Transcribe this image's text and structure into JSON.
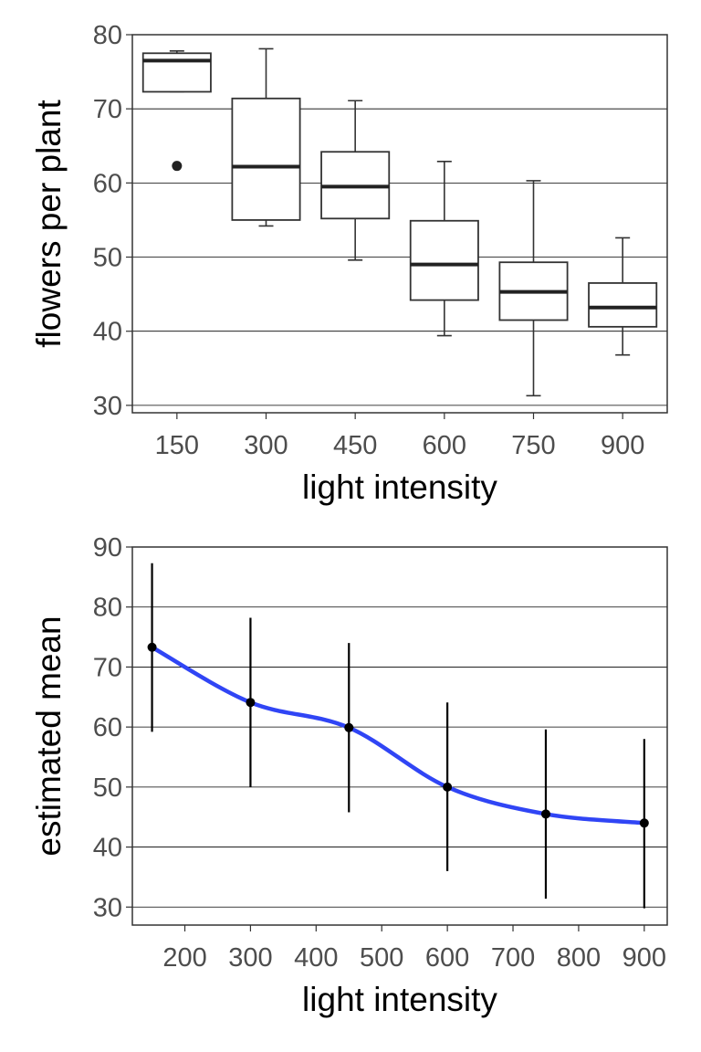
{
  "chart_data": [
    {
      "type": "box",
      "xlabel": "light intensity",
      "ylabel": "flowers per plant",
      "categories": [
        "150",
        "300",
        "450",
        "600",
        "750",
        "900"
      ],
      "boxes": [
        {
          "category": "150",
          "min": 72.3,
          "q1": 72.3,
          "median": 76.5,
          "q3": 77.5,
          "max": 77.8,
          "outliers": [
            62.3
          ]
        },
        {
          "category": "300",
          "min": 54.2,
          "q1": 55.0,
          "median": 62.2,
          "q3": 71.4,
          "max": 78.1,
          "outliers": []
        },
        {
          "category": "450",
          "min": 49.6,
          "q1": 55.2,
          "median": 59.5,
          "q3": 64.2,
          "max": 71.1,
          "outliers": []
        },
        {
          "category": "600",
          "min": 39.4,
          "q1": 44.2,
          "median": 49.0,
          "q3": 54.9,
          "max": 62.9,
          "outliers": []
        },
        {
          "category": "750",
          "min": 31.3,
          "q1": 41.5,
          "median": 45.3,
          "q3": 49.3,
          "max": 60.3,
          "outliers": []
        },
        {
          "category": "900",
          "min": 36.8,
          "q1": 40.6,
          "median": 43.2,
          "q3": 46.5,
          "max": 52.6,
          "outliers": []
        }
      ],
      "yticks": [
        30,
        40,
        50,
        60,
        70,
        80
      ],
      "ylim": [
        29,
        80
      ],
      "grid": "horizontal"
    },
    {
      "type": "line",
      "xlabel": "light intensity",
      "ylabel": "estimated mean",
      "x": [
        150,
        300,
        450,
        600,
        750,
        900
      ],
      "y": [
        73.3,
        64.1,
        59.9,
        50.0,
        45.5,
        44.0
      ],
      "lower": [
        59.2,
        50.0,
        45.8,
        36.0,
        31.4,
        29.8
      ],
      "upper": [
        87.3,
        78.2,
        74.0,
        64.1,
        59.6,
        58.0
      ],
      "xticks": [
        200,
        300,
        400,
        500,
        600,
        700,
        800,
        900
      ],
      "yticks": [
        30,
        40,
        50,
        60,
        70,
        80,
        90
      ],
      "xlim": [
        120,
        935
      ],
      "ylim": [
        27,
        90
      ],
      "smooth_color": "#3045f5",
      "grid": "horizontal"
    }
  ]
}
